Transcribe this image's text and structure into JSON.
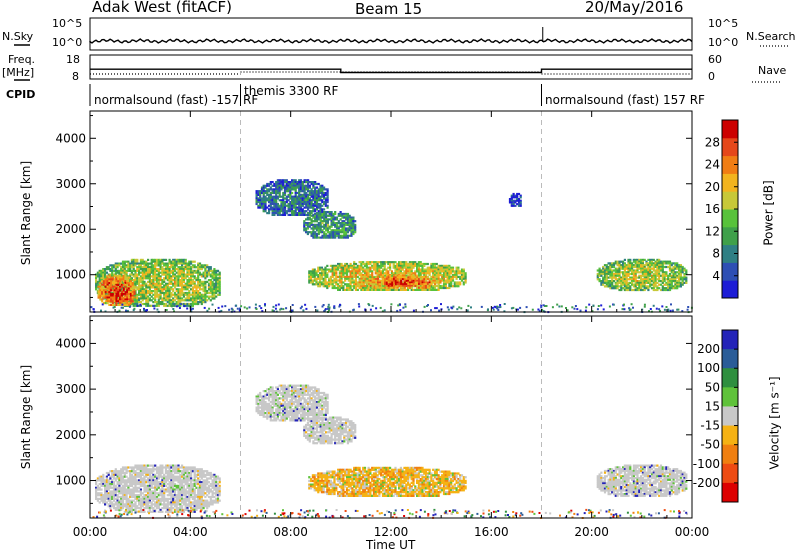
{
  "header": {
    "radar": "Adak West (fitACF)",
    "beam": "Beam 15",
    "date": "20/May/2016"
  },
  "summary_panels": {
    "nsky_label": "N.Sky",
    "nsky_ticks": [
      "10^5",
      "10^0"
    ],
    "nsearch_label": "N.Search",
    "nsearch_ticks": [
      "10^5",
      "10^0"
    ],
    "freq_label_1": "Freq.",
    "freq_label_2": "[MHz]",
    "freq_ticks": [
      "18",
      "8"
    ],
    "nave_label": "Nave",
    "nave_ticks": [
      "60",
      "0"
    ],
    "cpid_label": "CPID",
    "cpid_segments": [
      {
        "name": "normalsound (fast) -157 RF",
        "start": 0,
        "end": 6
      },
      {
        "name": "themis 3300 RF",
        "start": 6,
        "end": 18
      },
      {
        "name": "normalsound (fast) 157 RF",
        "start": 18,
        "end": 24
      }
    ],
    "freq_step": [
      {
        "start": 0,
        "end": 10,
        "freq": 12.0
      },
      {
        "start": 10,
        "end": 18,
        "freq": 10.5
      },
      {
        "start": 18,
        "end": 24,
        "freq": 12.0
      }
    ]
  },
  "chart_data": [
    {
      "type": "heatmap",
      "panel": "power",
      "ylabel": "Slant Range [km]",
      "yticks": [
        "1000",
        "2000",
        "3000",
        "4000"
      ],
      "ylim": [
        180,
        4600
      ],
      "xlim": [
        0,
        24
      ],
      "colorbar_label": "Power [dB]",
      "colorbar_ticks": [
        "4",
        "8",
        "12",
        "16",
        "20",
        "24",
        "28"
      ],
      "colorbar_range": [
        0,
        32
      ],
      "colors": [
        "#1d1dd6",
        "#2e4fb4",
        "#2f7f84",
        "#3fa04a",
        "#58c23b",
        "#c7c838",
        "#f2b41f",
        "#f07d14",
        "#e5471a",
        "#cc0000"
      ],
      "echo_regions": [
        {
          "x0": 0.2,
          "x1": 5.2,
          "r0": 300,
          "r1": 1350,
          "level": 0.55
        },
        {
          "x0": 0.3,
          "x1": 1.8,
          "r0": 320,
          "r1": 1000,
          "level": 0.9
        },
        {
          "x0": 6.6,
          "x1": 9.5,
          "r0": 2300,
          "r1": 3100,
          "level": 0.25
        },
        {
          "x0": 8.5,
          "x1": 10.6,
          "r0": 1800,
          "r1": 2400,
          "level": 0.35
        },
        {
          "x0": 8.7,
          "x1": 15.0,
          "r0": 650,
          "r1": 1300,
          "level": 0.65
        },
        {
          "x0": 10.8,
          "x1": 14.0,
          "r0": 700,
          "r1": 1000,
          "level": 0.85
        },
        {
          "x0": 20.2,
          "x1": 23.8,
          "r0": 650,
          "r1": 1350,
          "level": 0.55
        },
        {
          "x0": 16.7,
          "x1": 17.2,
          "r0": 2500,
          "r1": 2800,
          "level": 0.1
        }
      ]
    },
    {
      "type": "heatmap",
      "panel": "velocity",
      "ylabel": "Slant Range [km]",
      "yticks": [
        "1000",
        "2000",
        "3000",
        "4000"
      ],
      "ylim": [
        180,
        4600
      ],
      "xlim": [
        0,
        24
      ],
      "colorbar_label": "Velocity [m s⁻¹]",
      "colorbar_ticks": [
        "200",
        "100",
        "50",
        "15",
        "-15",
        "-50",
        "-100",
        "-200"
      ],
      "colors": [
        "#2323b8",
        "#2a5c98",
        "#2f8f3f",
        "#5fc23a",
        "#c8c8c8",
        "#f5b214",
        "#f07f10",
        "#ee4b12",
        "#dc0000"
      ],
      "echo_regions": [
        {
          "x0": 0.2,
          "x1": 5.2,
          "r0": 300,
          "r1": 1350,
          "class": "gray"
        },
        {
          "x0": 6.6,
          "x1": 9.5,
          "r0": 2300,
          "r1": 3100,
          "class": "gray"
        },
        {
          "x0": 8.5,
          "x1": 10.6,
          "r0": 1800,
          "r1": 2400,
          "class": "gray"
        },
        {
          "x0": 8.7,
          "x1": 15.0,
          "r0": 650,
          "r1": 1300,
          "class": "orange"
        },
        {
          "x0": 20.2,
          "x1": 23.8,
          "r0": 650,
          "r1": 1350,
          "class": "gray"
        }
      ]
    }
  ],
  "xaxis": {
    "ticks": [
      "00:00",
      "04:00",
      "08:00",
      "12:00",
      "16:00",
      "20:00",
      "00:00"
    ],
    "label": "Time UT"
  }
}
